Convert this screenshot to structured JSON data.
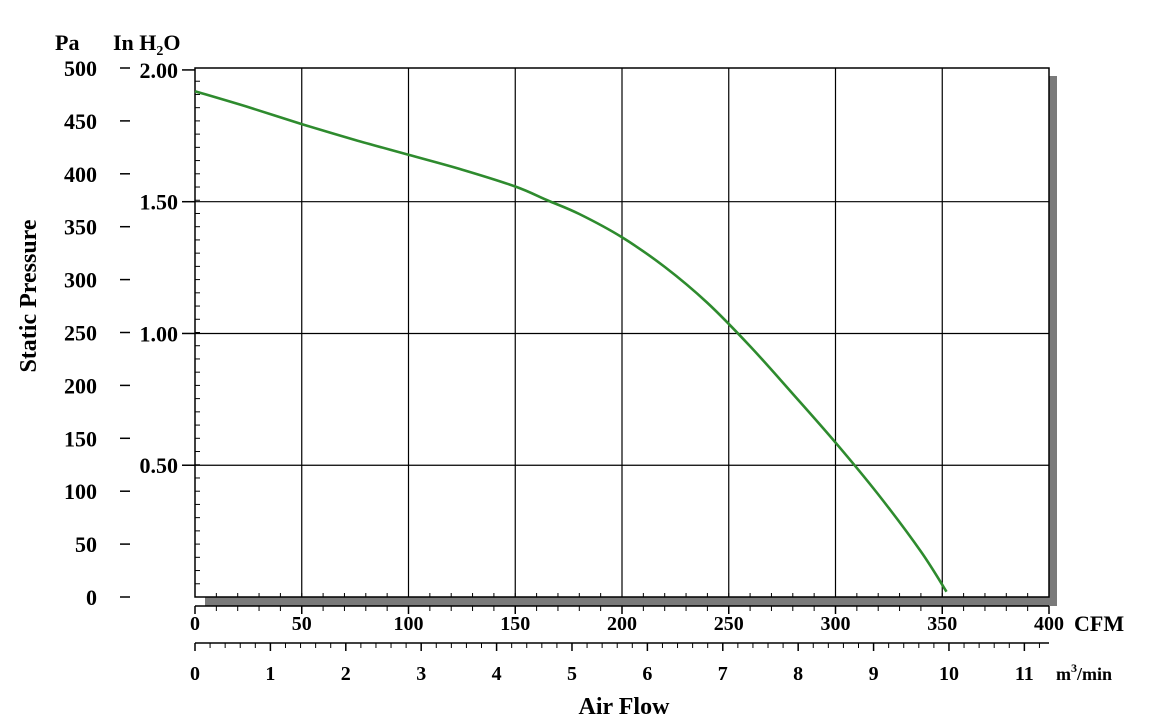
{
  "chart_data": {
    "type": "line",
    "title": "",
    "xlabel": "Air Flow",
    "ylabel": "Static Pressure",
    "unit_pa": "Pa",
    "unit_inh2o_base": "In H",
    "unit_inh2o_sub": "2",
    "unit_inh2o_tail": "O",
    "unit_cfm": "CFM",
    "unit_m3_base": "m",
    "unit_m3_sup": "3",
    "unit_m3_tail": "/min",
    "x_cfm_ticks": [
      "0",
      "50",
      "100",
      "150",
      "200",
      "250",
      "300",
      "350",
      "400"
    ],
    "x_m3_ticks": [
      "0",
      "1",
      "2",
      "3",
      "4",
      "5",
      "6",
      "7",
      "8",
      "9",
      "10",
      "11"
    ],
    "y_pa_ticks": [
      "0",
      "50",
      "100",
      "150",
      "200",
      "250",
      "300",
      "350",
      "400",
      "450",
      "500"
    ],
    "y_inh2o_ticks": [
      "0.50",
      "1.00",
      "1.50",
      "2.00"
    ],
    "xlim_cfm": [
      0,
      400
    ],
    "ylim_pa": [
      0,
      500
    ],
    "grid": true,
    "series": [
      {
        "color": "#2e8b2e",
        "x": [
          0,
          25,
          50,
          75,
          100,
          125,
          150,
          165,
          180,
          200,
          220,
          240,
          260,
          280,
          300,
          320,
          340,
          352
        ],
        "y": [
          478,
          463,
          447,
          432,
          418,
          404,
          388,
          375,
          362,
          340,
          312,
          278,
          237,
          192,
          146,
          97,
          43,
          5
        ]
      }
    ]
  }
}
